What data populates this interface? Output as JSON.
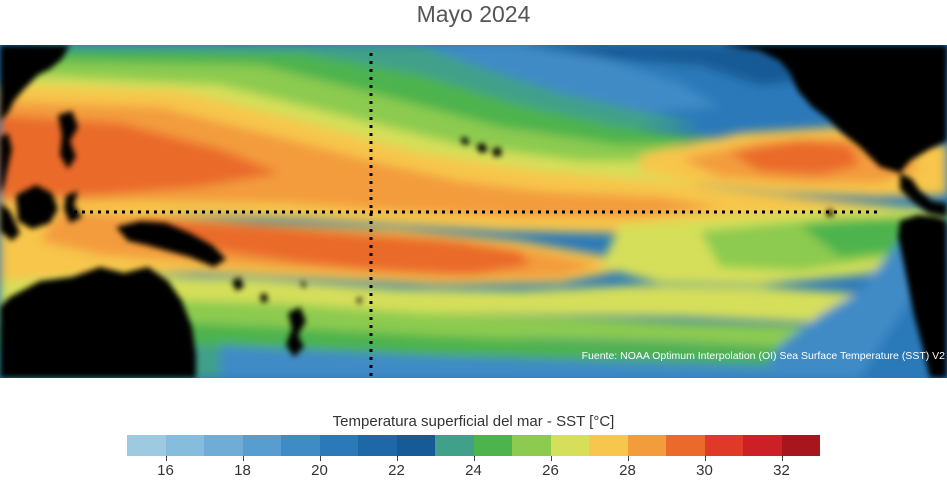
{
  "title": "Mayo 2024",
  "source": "Fuente: NOAA Optimum Interpolation (OI) Sea Surface Temperature (SST) V2",
  "colorbar": {
    "title": "Temperatura superficial del mar - SST  [°C]",
    "min": 15,
    "max": 33,
    "step": 1,
    "colors": [
      "#9ecae1",
      "#86bcdc",
      "#6fadd6",
      "#579dd0",
      "#3f8bc6",
      "#2b79b9",
      "#1f68a8",
      "#165a96",
      "#41a089",
      "#4db34d",
      "#8ccb4f",
      "#d6df5a",
      "#f7c64c",
      "#f39c3c",
      "#ea6a2b",
      "#de3a27",
      "#cc1f26",
      "#a8161d"
    ],
    "tick_labels": [
      "16",
      "18",
      "20",
      "22",
      "24",
      "26",
      "28",
      "30",
      "32"
    ],
    "tick_values": [
      16,
      18,
      20,
      22,
      24,
      26,
      28,
      30,
      32
    ]
  },
  "map": {
    "land_color": "#000000",
    "reference_lines": [
      "equator",
      "dateline"
    ]
  }
}
